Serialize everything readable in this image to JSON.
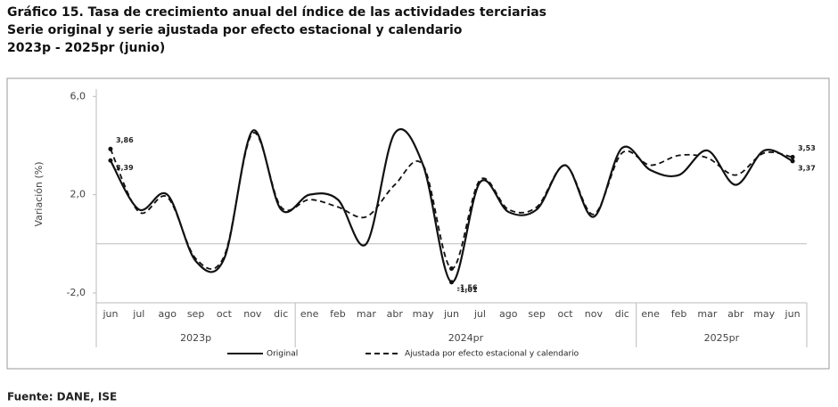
{
  "chart_data": {
    "type": "line",
    "title": "Gráfico 15. Tasa de crecimiento anual del índice de las actividades terciarias",
    "subtitle": "Serie original y serie ajustada por efecto estacional y calendario",
    "period": "2023p - 2025pr (junio)",
    "y_label": "Variación (%)",
    "source": "Fuente: DANE, ISE",
    "categories": [
      "jun",
      "jul",
      "ago",
      "sep",
      "oct",
      "nov",
      "dic",
      "ene",
      "feb",
      "mar",
      "abr",
      "may",
      "jun",
      "jul",
      "ago",
      "sep",
      "oct",
      "nov",
      "dic",
      "ene",
      "feb",
      "mar",
      "abr",
      "may",
      "jun"
    ],
    "groups": [
      {
        "label": "2023p",
        "span": [
          0,
          6
        ]
      },
      {
        "label": "2024pr",
        "span": [
          7,
          18
        ]
      },
      {
        "label": "2025pr",
        "span": [
          19,
          24
        ]
      }
    ],
    "series": [
      {
        "name": "Original",
        "color": "#111111",
        "dash": false,
        "values": [
          3.39,
          1.4,
          2.0,
          -0.7,
          -0.6,
          4.6,
          1.4,
          2.0,
          1.8,
          0.0,
          4.5,
          3.2,
          -1.56,
          2.5,
          1.3,
          1.4,
          3.2,
          1.1,
          3.9,
          3.0,
          2.8,
          3.8,
          2.4,
          3.8,
          3.37
        ],
        "value_labels": [
          "3,39",
          null,
          null,
          null,
          null,
          null,
          null,
          null,
          null,
          null,
          null,
          null,
          "-1,56",
          null,
          null,
          null,
          null,
          null,
          null,
          null,
          null,
          null,
          null,
          null,
          "3,37"
        ]
      },
      {
        "name": "Ajustada por efecto estacional y calendario",
        "color": "#111111",
        "dash": true,
        "values": [
          3.86,
          1.3,
          1.9,
          -0.6,
          -0.5,
          4.5,
          1.5,
          1.8,
          1.5,
          1.1,
          2.4,
          3.2,
          -1.01,
          2.6,
          1.4,
          1.5,
          3.2,
          1.2,
          3.7,
          3.2,
          3.6,
          3.5,
          2.8,
          3.7,
          3.53
        ],
        "value_labels": [
          "3,86",
          null,
          null,
          null,
          null,
          null,
          null,
          null,
          null,
          null,
          null,
          null,
          "-1,01",
          null,
          null,
          null,
          null,
          null,
          null,
          null,
          null,
          null,
          null,
          null,
          "3,53"
        ]
      }
    ],
    "ylim": [
      -2.4,
      6.3
    ],
    "yticks": [
      {
        "value": 6.0,
        "label": "6,0"
      },
      {
        "value": 2.0,
        "label": "2,0"
      },
      {
        "value": -2.0,
        "label": "-2,0"
      }
    ],
    "grid": false
  }
}
